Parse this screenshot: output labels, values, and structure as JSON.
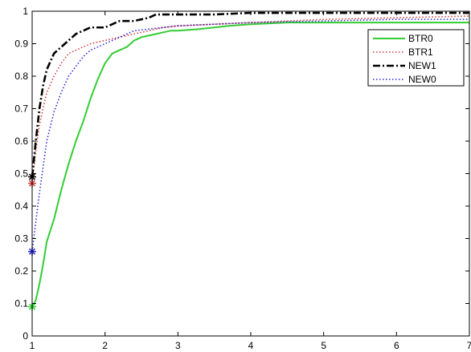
{
  "chart_data": {
    "type": "line",
    "title": "",
    "xlabel": "",
    "ylabel": "",
    "xlim": [
      1,
      7
    ],
    "ylim": [
      0,
      1
    ],
    "xticks": [
      "1",
      "2",
      "3",
      "4",
      "5",
      "6",
      "7"
    ],
    "yticks": [
      "0",
      "0.1",
      "0.2",
      "0.3",
      "0.4",
      "0.5",
      "0.6",
      "0.7",
      "0.8",
      "0.9",
      "1"
    ],
    "grid": false,
    "legend_position": "top-right",
    "series": [
      {
        "name": "BTR0",
        "color": "#33cc33",
        "style": "solid",
        "start_marker": "*",
        "x": [
          1,
          1.05,
          1.1,
          1.15,
          1.2,
          1.3,
          1.4,
          1.5,
          1.6,
          1.7,
          1.8,
          1.9,
          2.0,
          2.1,
          2.2,
          2.3,
          2.4,
          2.5,
          2.6,
          2.7,
          2.8,
          2.9,
          3.0,
          3.3,
          3.5,
          3.7,
          4.0,
          4.5,
          5.0,
          6.0,
          7.0
        ],
        "y": [
          0.09,
          0.11,
          0.16,
          0.22,
          0.29,
          0.36,
          0.45,
          0.53,
          0.6,
          0.66,
          0.73,
          0.79,
          0.84,
          0.87,
          0.88,
          0.89,
          0.91,
          0.92,
          0.925,
          0.93,
          0.935,
          0.94,
          0.94,
          0.945,
          0.95,
          0.955,
          0.96,
          0.965,
          0.965,
          0.965,
          0.965
        ]
      },
      {
        "name": "BTR1",
        "color": "#d23c3c",
        "style": "dotted",
        "start_marker": "*",
        "x": [
          1,
          1.05,
          1.1,
          1.15,
          1.2,
          1.3,
          1.4,
          1.5,
          1.6,
          1.8,
          2.0,
          2.2,
          2.4,
          2.6,
          2.8,
          3.0,
          3.5,
          4.0,
          4.5,
          5.0,
          6.0,
          7.0
        ],
        "y": [
          0.47,
          0.57,
          0.65,
          0.7,
          0.75,
          0.8,
          0.84,
          0.87,
          0.88,
          0.9,
          0.91,
          0.92,
          0.93,
          0.94,
          0.95,
          0.955,
          0.96,
          0.965,
          0.97,
          0.975,
          0.98,
          0.985
        ]
      },
      {
        "name": "NEW1",
        "color": "#000000",
        "style": "dashdot",
        "start_marker": "*",
        "x": [
          1,
          1.05,
          1.1,
          1.15,
          1.2,
          1.3,
          1.4,
          1.5,
          1.6,
          1.7,
          1.8,
          2.0,
          2.2,
          2.4,
          2.6,
          2.7,
          3.0,
          3.5,
          4.0,
          5.0,
          6.0,
          7.0
        ],
        "y": [
          0.49,
          0.6,
          0.7,
          0.77,
          0.82,
          0.87,
          0.89,
          0.91,
          0.93,
          0.94,
          0.95,
          0.95,
          0.97,
          0.97,
          0.98,
          0.99,
          0.99,
          0.99,
          0.995,
          0.995,
          0.995,
          0.995
        ]
      },
      {
        "name": "NEW0",
        "color": "#2a2ad4",
        "style": "dotted",
        "start_marker": "*",
        "x": [
          1,
          1.05,
          1.1,
          1.15,
          1.2,
          1.3,
          1.4,
          1.5,
          1.6,
          1.7,
          1.8,
          2.0,
          2.2,
          2.4,
          2.6,
          2.8,
          3.0,
          3.5,
          4.0,
          5.0,
          6.0,
          7.0
        ],
        "y": [
          0.26,
          0.35,
          0.44,
          0.52,
          0.6,
          0.69,
          0.75,
          0.8,
          0.83,
          0.86,
          0.88,
          0.9,
          0.92,
          0.94,
          0.945,
          0.95,
          0.955,
          0.96,
          0.965,
          0.97,
          0.975,
          0.975
        ]
      }
    ]
  }
}
